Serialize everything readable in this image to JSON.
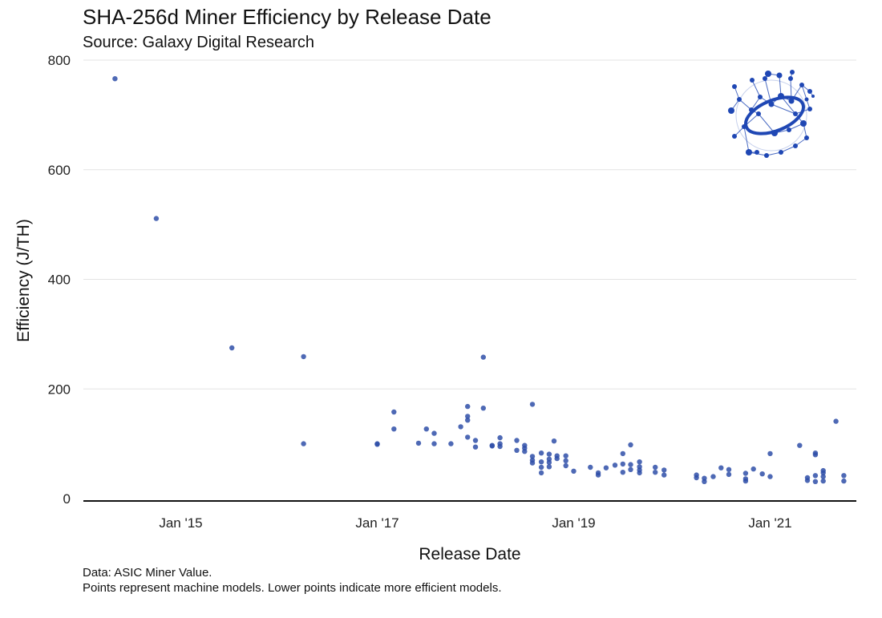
{
  "title": "SHA-256d Miner Efficiency by Release Date",
  "subtitle": "Source: Galaxy Digital Research",
  "caption": {
    "line1": "Data: ASIC Miner Value.",
    "line2": "Points represent machine models. Lower points indicate more efficient models."
  },
  "colors": {
    "point": "#2f4fa8",
    "grid": "#e3e3e3",
    "axis": "#111111",
    "logo": "#1f47b4"
  },
  "logo": {
    "icon": "galaxy-logo-icon"
  },
  "chart_data": {
    "type": "scatter",
    "title": "SHA-256d Miner Efficiency by Release Date",
    "xlabel": "Release Date",
    "ylabel": "Efficiency (J/TH)",
    "x_unit": "years since Jan 2014",
    "xlim": [
      0.0,
      8.0
    ],
    "ylim": [
      0,
      800
    ],
    "yticks": [
      {
        "value": 0,
        "label": "0"
      },
      {
        "value": 200,
        "label": "200"
      },
      {
        "value": 400,
        "label": "400"
      },
      {
        "value": 600,
        "label": "600"
      },
      {
        "value": 800,
        "label": "800"
      }
    ],
    "xticks": [
      {
        "value": 1,
        "label": "Jan '15"
      },
      {
        "value": 3,
        "label": "Jan '17"
      },
      {
        "value": 5,
        "label": "Jan '19"
      },
      {
        "value": 7,
        "label": "Jan '21"
      }
    ],
    "grid": true,
    "points": [
      [
        0.33,
        766
      ],
      [
        0.75,
        511
      ],
      [
        1.52,
        275
      ],
      [
        2.25,
        259
      ],
      [
        2.25,
        100
      ],
      [
        3.0,
        100
      ],
      [
        3.0,
        99
      ],
      [
        3.17,
        158
      ],
      [
        3.17,
        127
      ],
      [
        3.42,
        101
      ],
      [
        3.5,
        127
      ],
      [
        3.58,
        119
      ],
      [
        3.58,
        100
      ],
      [
        3.75,
        100
      ],
      [
        3.85,
        131
      ],
      [
        3.92,
        168
      ],
      [
        3.92,
        150
      ],
      [
        3.92,
        143
      ],
      [
        3.92,
        112
      ],
      [
        4.0,
        106
      ],
      [
        4.0,
        94
      ],
      [
        4.08,
        258
      ],
      [
        4.08,
        165
      ],
      [
        4.17,
        97
      ],
      [
        4.17,
        96
      ],
      [
        4.25,
        111
      ],
      [
        4.25,
        100
      ],
      [
        4.25,
        95
      ],
      [
        4.42,
        106
      ],
      [
        4.42,
        88
      ],
      [
        4.5,
        97
      ],
      [
        4.5,
        92
      ],
      [
        4.5,
        86
      ],
      [
        4.58,
        172
      ],
      [
        4.58,
        77
      ],
      [
        4.58,
        70
      ],
      [
        4.58,
        65
      ],
      [
        4.67,
        83
      ],
      [
        4.67,
        67
      ],
      [
        4.67,
        57
      ],
      [
        4.67,
        47
      ],
      [
        4.75,
        81
      ],
      [
        4.75,
        72
      ],
      [
        4.75,
        66
      ],
      [
        4.75,
        58
      ],
      [
        4.8,
        105
      ],
      [
        4.83,
        78
      ],
      [
        4.83,
        73
      ],
      [
        4.92,
        78
      ],
      [
        4.92,
        69
      ],
      [
        4.92,
        60
      ],
      [
        5.0,
        50
      ],
      [
        5.17,
        57
      ],
      [
        5.25,
        47
      ],
      [
        5.25,
        43
      ],
      [
        5.33,
        56
      ],
      [
        5.42,
        61
      ],
      [
        5.5,
        63
      ],
      [
        5.5,
        48
      ],
      [
        5.5,
        82
      ],
      [
        5.58,
        98
      ],
      [
        5.58,
        62
      ],
      [
        5.58,
        53
      ],
      [
        5.67,
        67
      ],
      [
        5.67,
        58
      ],
      [
        5.67,
        52
      ],
      [
        5.67,
        47
      ],
      [
        5.83,
        57
      ],
      [
        5.83,
        48
      ],
      [
        5.92,
        52
      ],
      [
        5.92,
        43
      ],
      [
        6.25,
        43
      ],
      [
        6.25,
        38
      ],
      [
        6.33,
        37
      ],
      [
        6.33,
        31
      ],
      [
        6.42,
        40
      ],
      [
        6.5,
        56
      ],
      [
        6.58,
        53
      ],
      [
        6.58,
        44
      ],
      [
        6.75,
        46
      ],
      [
        6.75,
        36
      ],
      [
        6.75,
        32
      ],
      [
        6.83,
        54
      ],
      [
        6.92,
        45
      ],
      [
        7.0,
        82
      ],
      [
        7.0,
        40
      ],
      [
        7.3,
        97
      ],
      [
        7.38,
        38
      ],
      [
        7.38,
        33
      ],
      [
        7.46,
        83
      ],
      [
        7.46,
        80
      ],
      [
        7.46,
        42
      ],
      [
        7.46,
        31
      ],
      [
        7.54,
        51
      ],
      [
        7.54,
        47
      ],
      [
        7.54,
        40
      ],
      [
        7.54,
        32
      ],
      [
        7.67,
        141
      ],
      [
        7.75,
        42
      ],
      [
        7.75,
        32
      ]
    ]
  }
}
